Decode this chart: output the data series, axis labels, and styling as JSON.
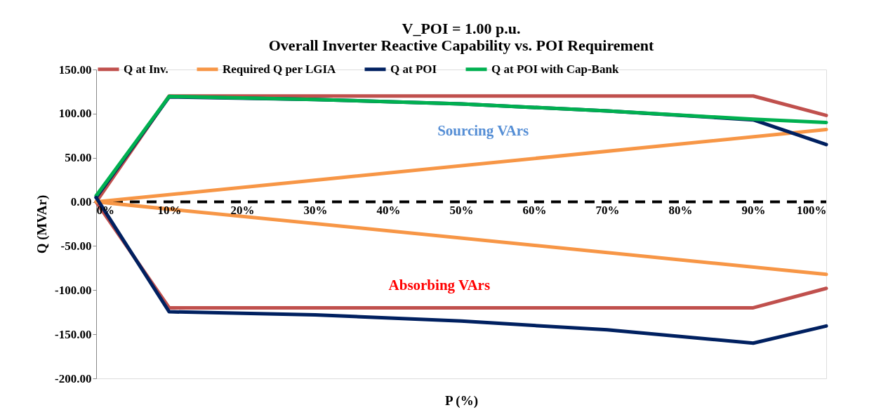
{
  "chart_data": {
    "type": "line",
    "title": "V_POI = 1.00 p.u.\nOverall Inverter Reactive Capability vs. POI Requirement",
    "xlabel": "P (%)",
    "ylabel": "Q (MVAr)",
    "xlim": [
      0,
      100
    ],
    "xticks": [
      {
        "value": 0,
        "label": "0%"
      },
      {
        "value": 10,
        "label": "10%"
      },
      {
        "value": 20,
        "label": "20%"
      },
      {
        "value": 30,
        "label": "30%"
      },
      {
        "value": 40,
        "label": "40%"
      },
      {
        "value": 50,
        "label": "50%"
      },
      {
        "value": 60,
        "label": "60%"
      },
      {
        "value": 70,
        "label": "70%"
      },
      {
        "value": 80,
        "label": "80%"
      },
      {
        "value": 90,
        "label": "90%"
      },
      {
        "value": 100,
        "label": "100%"
      }
    ],
    "ylim": [
      -200,
      150
    ],
    "yticks": [
      {
        "value": -200,
        "label": "-200.00"
      },
      {
        "value": -150,
        "label": "-150.00"
      },
      {
        "value": -100,
        "label": "-100.00"
      },
      {
        "value": -50,
        "label": "-50.00"
      },
      {
        "value": 0,
        "label": "0.00"
      },
      {
        "value": 50,
        "label": "50.00"
      },
      {
        "value": 100,
        "label": "100.00"
      },
      {
        "value": 150,
        "label": "150.00"
      }
    ],
    "series": [
      {
        "name": "Q at Inv.",
        "color": "#c0504d",
        "x": [
          0,
          10,
          90,
          100
        ],
        "values": [
          0,
          120,
          120,
          98
        ]
      },
      {
        "name": "Required Q per LGIA",
        "color": "#f79646",
        "x": [
          0,
          100
        ],
        "values": [
          0,
          82
        ]
      },
      {
        "name": "Q at POI",
        "color": "#002060",
        "x": [
          0,
          10,
          30,
          50,
          70,
          90,
          100
        ],
        "values": [
          5,
          119,
          116,
          111,
          103,
          93,
          65
        ]
      },
      {
        "name": "Q at POI with Cap-Bank",
        "color": "#00b050",
        "x": [
          0,
          10,
          30,
          50,
          70,
          90,
          100
        ],
        "values": [
          7,
          119.5,
          116,
          111,
          103,
          93.7,
          90
        ]
      },
      {
        "color": "#c0504d",
        "x": [
          0,
          10,
          90,
          100
        ],
        "values": [
          0,
          -120,
          -120,
          -98
        ]
      },
      {
        "color": "#f79646",
        "x": [
          0,
          100
        ],
        "values": [
          0,
          -82
        ]
      },
      {
        "color": "#002060",
        "x": [
          0,
          10,
          30,
          50,
          70,
          90,
          100
        ],
        "values": [
          5,
          -124.5,
          -128,
          -135,
          -145,
          -160,
          -140.6
        ]
      }
    ],
    "ref_lines": [
      {
        "axis": "y",
        "value": 0,
        "color": "#000000",
        "line_style": "dashed"
      }
    ],
    "annotations": [
      "Sourcing VArs",
      "Absorbing VArs"
    ],
    "legend": "top",
    "grid": false
  }
}
